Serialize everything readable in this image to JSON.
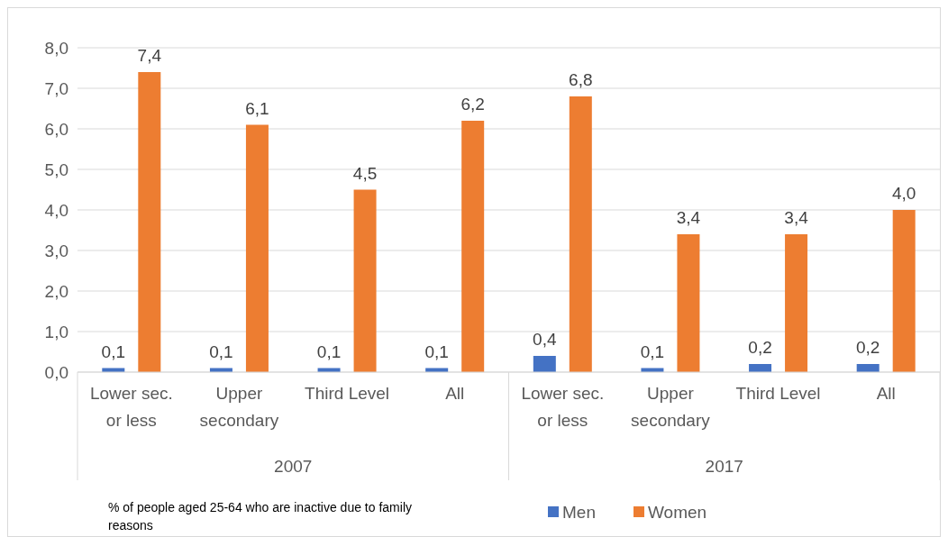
{
  "chart_data": {
    "type": "bar",
    "categories": [
      "Lower sec. or less",
      "Upper secondary",
      "Third Level",
      "All",
      "Lower sec. or less",
      "Upper secondary",
      "Third Level",
      "All"
    ],
    "series": [
      {
        "name": "Men",
        "color": "#4472c4",
        "values": [
          0.1,
          0.1,
          0.1,
          0.1,
          0.4,
          0.1,
          0.2,
          0.2
        ],
        "value_labels": [
          "0,1",
          "0,1",
          "0,1",
          "0,1",
          "0,4",
          "0,1",
          "0,2",
          "0,2"
        ]
      },
      {
        "name": "Women",
        "color": "#ed7d31",
        "values": [
          7.4,
          6.1,
          4.5,
          6.2,
          6.8,
          3.4,
          3.4,
          4.0
        ],
        "value_labels": [
          "7,4",
          "6,1",
          "4,5",
          "6,2",
          "6,8",
          "3,4",
          "3,4",
          "4,0"
        ]
      }
    ],
    "ylim": [
      0,
      8
    ],
    "yticks": [
      {
        "value": 0,
        "label": "0,0"
      },
      {
        "value": 1,
        "label": "1,0"
      },
      {
        "value": 2,
        "label": "2,0"
      },
      {
        "value": 3,
        "label": "3,0"
      },
      {
        "value": 4,
        "label": "4,0"
      },
      {
        "value": 5,
        "label": "5,0"
      },
      {
        "value": 6,
        "label": "6,0"
      },
      {
        "value": 7,
        "label": "7,0"
      },
      {
        "value": 8,
        "label": "8,0"
      }
    ],
    "grid": "y",
    "legend": "bottom",
    "annotations": [
      "2007",
      "2017",
      "% of people aged 25-64 who are inactive due to family reasons"
    ]
  }
}
